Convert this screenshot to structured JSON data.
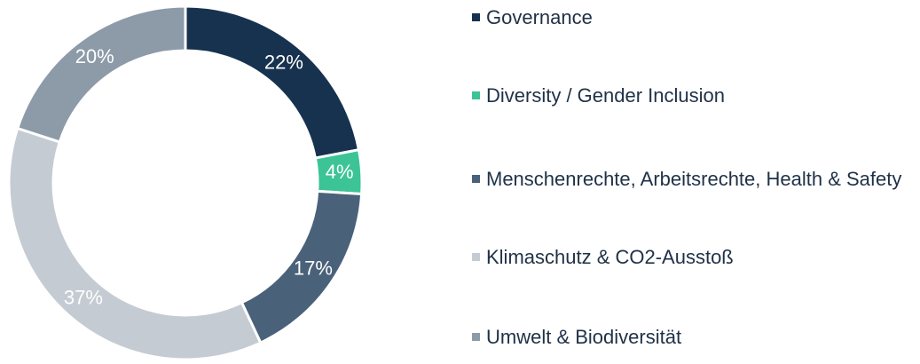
{
  "chart_data": {
    "type": "donut",
    "categories": [
      "Governance",
      "Diversity / Gender Inclusion",
      "Menschenrechte, Arbeitsrechte, Health & Safety",
      "Klimaschutz & CO2-Ausstoß",
      "Umwelt & Biodiversität"
    ],
    "values": [
      22,
      4,
      17,
      37,
      20
    ],
    "value_labels": [
      "22%",
      "4%",
      "17%",
      "37%",
      "20%"
    ],
    "colors": [
      "#17324f",
      "#3cc497",
      "#4a617a",
      "#c5cbd3",
      "#8d9aa8"
    ]
  }
}
